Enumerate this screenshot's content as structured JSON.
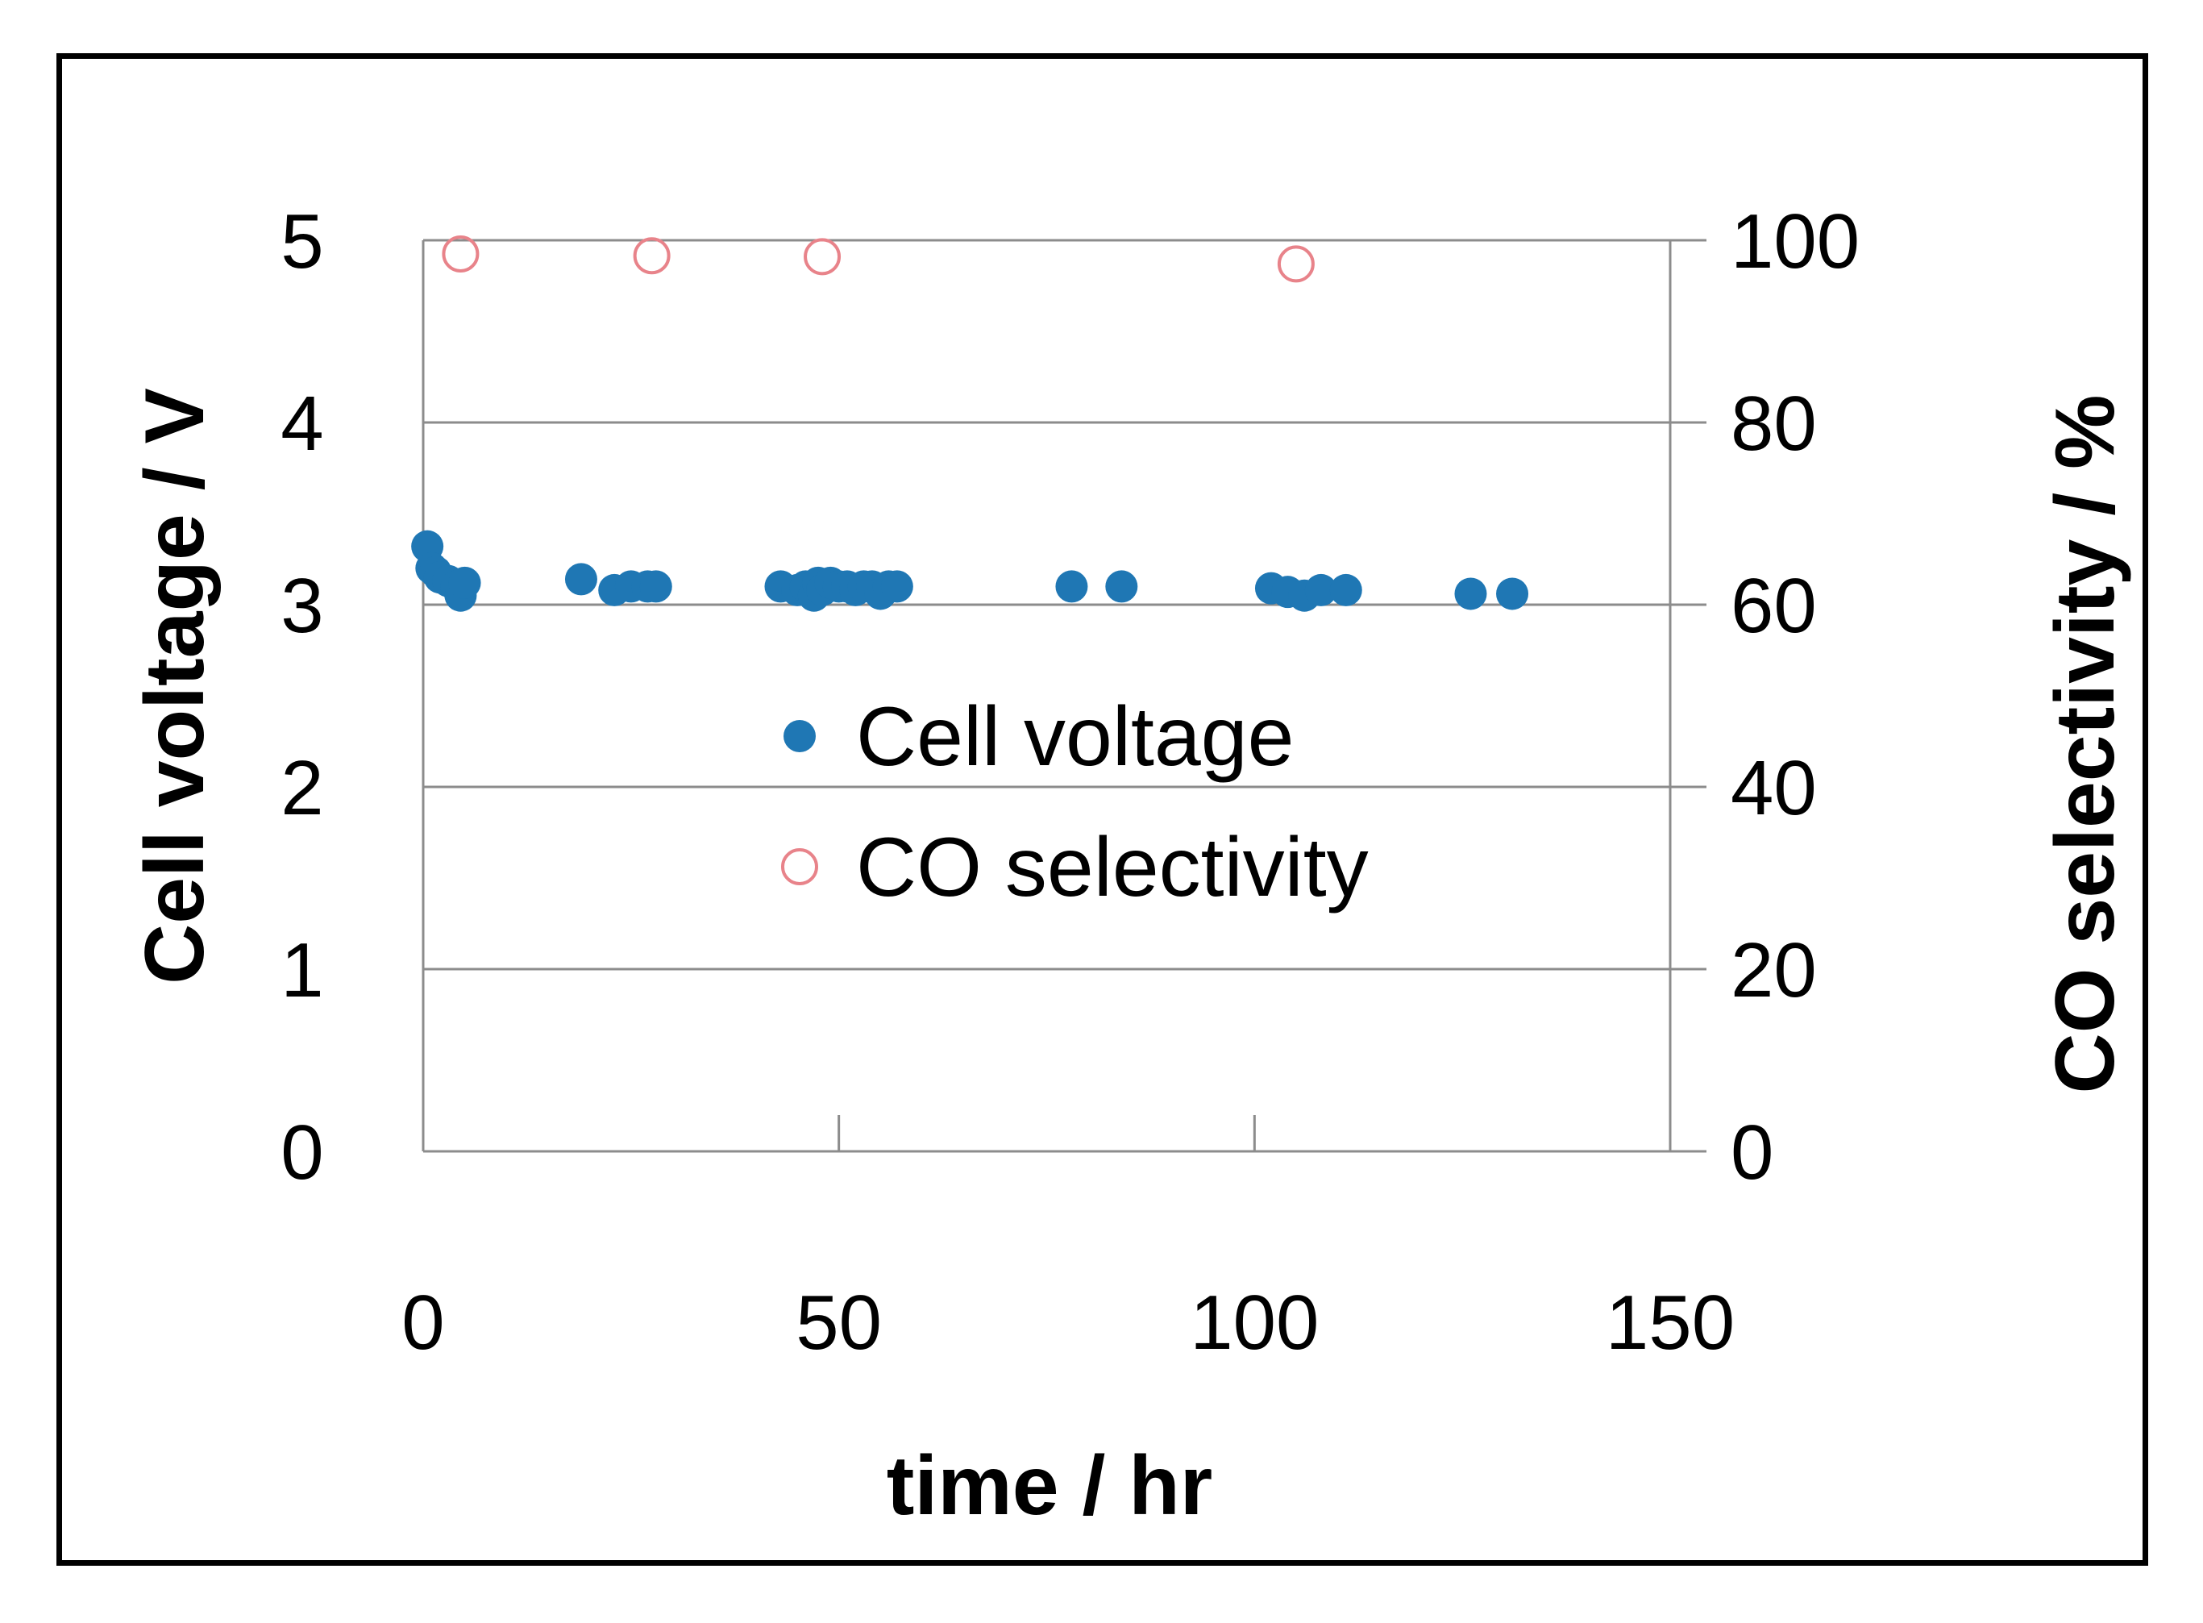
{
  "chart_data": {
    "type": "scatter",
    "xlabel": "time / hr",
    "ylabel": "Cell voltage / V",
    "y2label": "CO selectivity / %",
    "xlim": [
      0,
      150
    ],
    "ylim": [
      0,
      5
    ],
    "y2lim": [
      0,
      100
    ],
    "xticks": [
      "0",
      "50",
      "100",
      "150"
    ],
    "yticks": [
      "0",
      "1",
      "2",
      "3",
      "4",
      "5"
    ],
    "y2ticks": [
      "0",
      "20",
      "40",
      "60",
      "80",
      "100"
    ],
    "grid": "horizontal",
    "legend_position": "center",
    "series": [
      {
        "name": "Cell voltage",
        "axis": "left",
        "marker": "filled-circle",
        "color": "#1f77b4",
        "points": [
          [
            0.5,
            3.32
          ],
          [
            1,
            3.2
          ],
          [
            1.5,
            3.18
          ],
          [
            2,
            3.15
          ],
          [
            3,
            3.13
          ],
          [
            4,
            3.1
          ],
          [
            4.5,
            3.05
          ],
          [
            5,
            3.12
          ],
          [
            19,
            3.14
          ],
          [
            23,
            3.08
          ],
          [
            25,
            3.1
          ],
          [
            27,
            3.1
          ],
          [
            28,
            3.1
          ],
          [
            43,
            3.1
          ],
          [
            45,
            3.08
          ],
          [
            46,
            3.1
          ],
          [
            47,
            3.05
          ],
          [
            47.5,
            3.12
          ],
          [
            48,
            3.08
          ],
          [
            49,
            3.12
          ],
          [
            50,
            3.1
          ],
          [
            51,
            3.1
          ],
          [
            52,
            3.08
          ],
          [
            53,
            3.1
          ],
          [
            54,
            3.1
          ],
          [
            55,
            3.06
          ],
          [
            56,
            3.1
          ],
          [
            57,
            3.1
          ],
          [
            78,
            3.1
          ],
          [
            84,
            3.1
          ],
          [
            102,
            3.09
          ],
          [
            104,
            3.07
          ],
          [
            106,
            3.05
          ],
          [
            108,
            3.08
          ],
          [
            111,
            3.08
          ],
          [
            126,
            3.06
          ],
          [
            131,
            3.06
          ]
        ]
      },
      {
        "name": "CO selectivity",
        "axis": "right",
        "marker": "open-circle",
        "color": "#e8838a",
        "points": [
          [
            4.5,
            98.5
          ],
          [
            27.5,
            98.3
          ],
          [
            48,
            98.2
          ],
          [
            105,
            97.4
          ]
        ]
      }
    ]
  }
}
